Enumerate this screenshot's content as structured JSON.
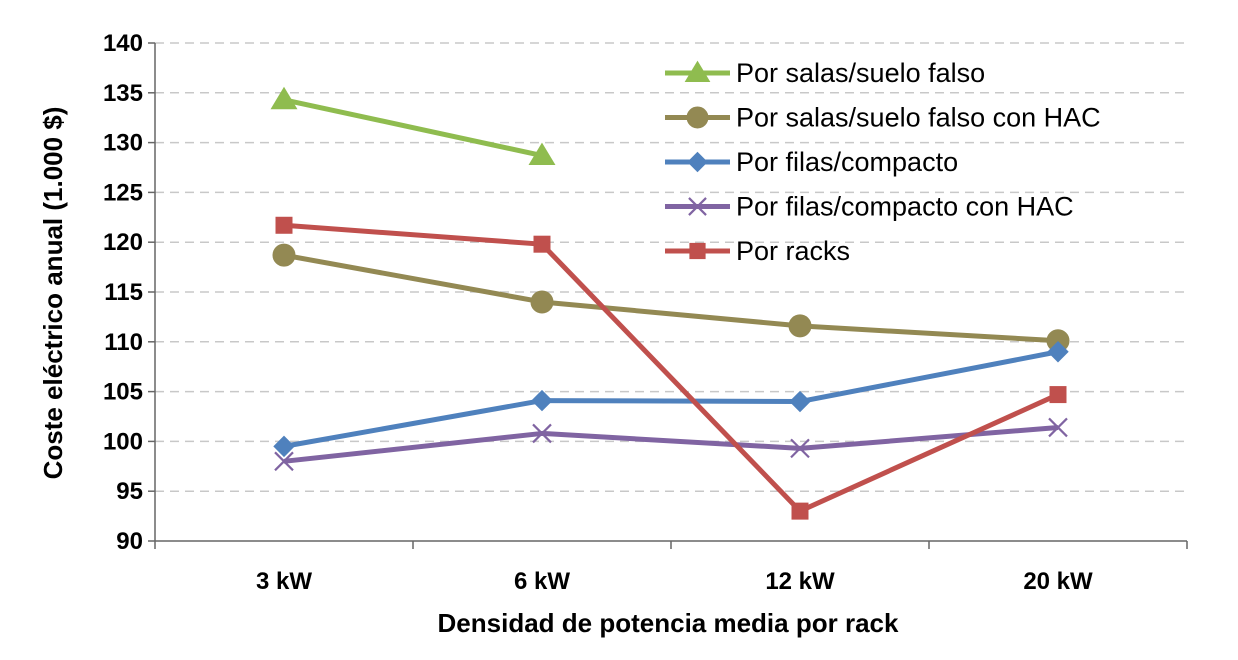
{
  "chart_data": {
    "type": "line",
    "categories": [
      "3 kW",
      "6 kW",
      "12 kW",
      "20 kW"
    ],
    "xlabel": "Densidad de potencia media por rack",
    "ylabel": "Coste eléctrico anual (1.000 $)",
    "ylim": [
      90,
      140
    ],
    "yticks": [
      "90",
      "95",
      "100",
      "105",
      "110",
      "115",
      "120",
      "125",
      "130",
      "135",
      "140"
    ],
    "grid": "horizontal dashed",
    "legend_position": "top-right",
    "series": [
      {
        "name": "Por salas/suelo falso",
        "color": "#8fbc4f",
        "marker": "triangle",
        "values": [
          134.3,
          128.7,
          null,
          null
        ]
      },
      {
        "name": "Por salas/suelo falso con HAC",
        "color": "#938953",
        "marker": "circle",
        "values": [
          118.7,
          114.0,
          111.6,
          110.1
        ]
      },
      {
        "name": "Por filas/compacto",
        "color": "#4f81bd",
        "marker": "diamond",
        "values": [
          99.5,
          104.1,
          104.0,
          109.0
        ]
      },
      {
        "name": "Por filas/compacto con HAC",
        "color": "#8064a2",
        "marker": "x",
        "values": [
          98.0,
          100.8,
          99.3,
          101.4
        ]
      },
      {
        "name": "Por racks",
        "color": "#c0504d",
        "marker": "square",
        "values": [
          121.7,
          119.8,
          93.0,
          104.7
        ]
      }
    ]
  }
}
